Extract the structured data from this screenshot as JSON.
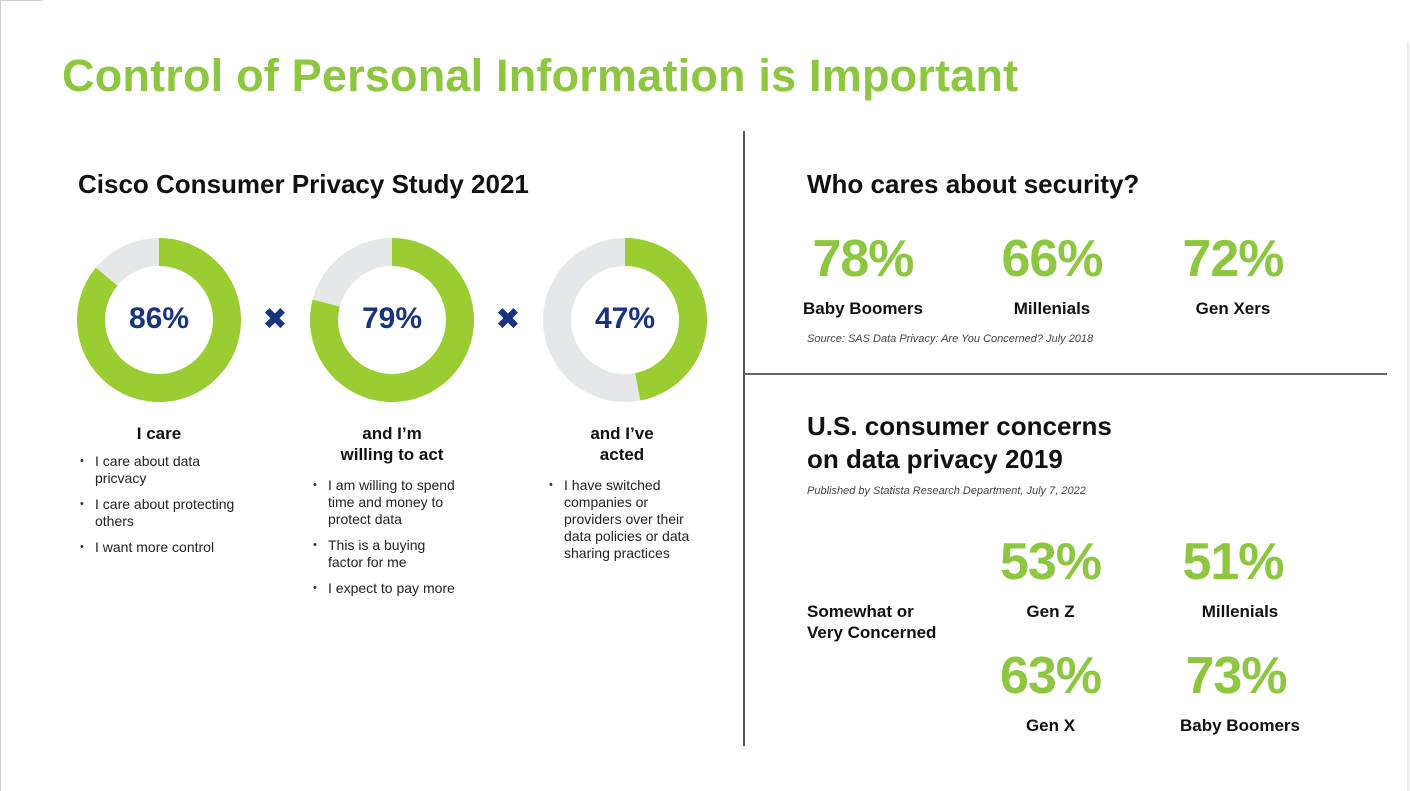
{
  "title": "Control of Personal Information is Important",
  "colors": {
    "accent_green": "#8dc63f",
    "track_grey": "#e6e7e8",
    "dark_blue": "#17347e"
  },
  "left_panel": {
    "heading": "Cisco Consumer Privacy Study 2021",
    "operator_icon": "times-icon",
    "operator_symbol": "✖",
    "columns": [
      {
        "percent": "86%",
        "heading": "I care",
        "bullets": [
          "I care about  data pricvacy",
          "I care about protecting others",
          "I want more control"
        ]
      },
      {
        "percent": "79%",
        "heading_lines": [
          "and I’m",
          "willing to act"
        ],
        "bullets": [
          "I am willing to spend time and money to protect data",
          "This is a buying factor for me",
          "I expect to pay more"
        ]
      },
      {
        "percent": "47%",
        "heading_lines": [
          "and I’ve",
          "acted"
        ],
        "bullets": [
          "I have switched companies or providers over their data policies or data sharing practices"
        ]
      }
    ]
  },
  "security": {
    "heading": "Who cares about security?",
    "items": [
      {
        "value": "78%",
        "label": "Baby Boomers"
      },
      {
        "value": "66%",
        "label": "Millenials"
      },
      {
        "value": "72%",
        "label": "Gen Xers"
      }
    ],
    "source": "Source: SAS Data Privacy: Are You Concerned? July 2018"
  },
  "concerns": {
    "heading_lines": [
      "U.S. consumer concerns",
      "on data privacy 2019"
    ],
    "source": "Published by Statista Research Department, July 7, 2022",
    "label_lines": [
      "Somewhat or",
      "Very Concerned"
    ],
    "items": [
      {
        "value": "53%",
        "label": "Gen Z"
      },
      {
        "value": "51%",
        "label": "Millenials"
      },
      {
        "value": "63%",
        "label": "Gen X"
      },
      {
        "value": "73%",
        "label": "Baby Boomers"
      }
    ]
  },
  "chart_data": [
    {
      "type": "pie",
      "title": "Cisco Consumer Privacy Study 2021",
      "categories": [
        "I care",
        "and I’m willing to act",
        "and I’ve acted"
      ],
      "values": [
        86,
        79,
        47
      ],
      "unit": "%"
    },
    {
      "type": "table",
      "title": "Who cares about security?",
      "categories": [
        "Baby Boomers",
        "Millenials",
        "Gen Xers"
      ],
      "values": [
        78,
        66,
        72
      ],
      "unit": "%"
    },
    {
      "type": "table",
      "title": "U.S. consumer concerns on data privacy 2019",
      "categories": [
        "Gen Z",
        "Millenials",
        "Gen X",
        "Baby Boomers"
      ],
      "values": [
        53,
        51,
        63,
        73
      ],
      "unit": "%",
      "series_label": "Somewhat or Very Concerned"
    }
  ]
}
